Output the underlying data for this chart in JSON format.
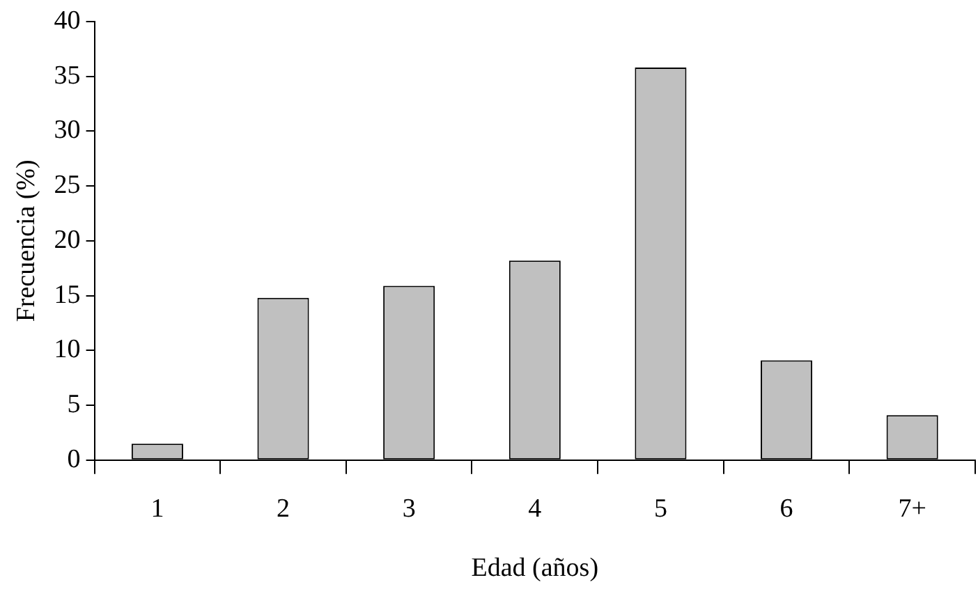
{
  "chart_data": {
    "type": "bar",
    "xlabel": "Edad (años)",
    "ylabel": "Frecuencia (%)",
    "categories": [
      "1",
      "2",
      "3",
      "4",
      "5",
      "6",
      "7+"
    ],
    "values": [
      1.5,
      14.8,
      15.9,
      18.2,
      35.8,
      9.1,
      4.1
    ],
    "color": "#c0c0c0",
    "ylim": [
      0,
      40
    ],
    "yticks": [
      0,
      5,
      10,
      15,
      20,
      25,
      30,
      35,
      40
    ],
    "grid": false,
    "legend": false
  }
}
